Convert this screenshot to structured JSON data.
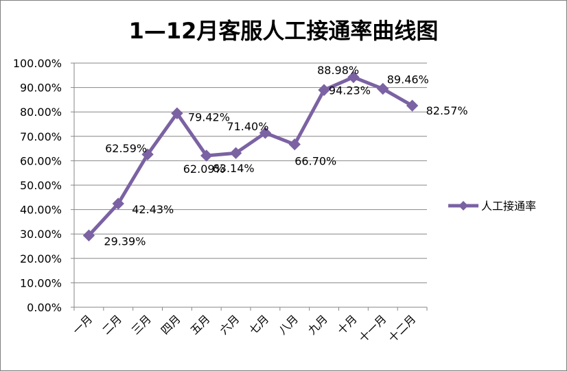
{
  "chart_data": {
    "type": "line",
    "title": "1—12月客服人工接通率曲线图",
    "xlabel": "",
    "ylabel": "",
    "categories": [
      "一月",
      "二月",
      "三月",
      "四月",
      "五月",
      "六月",
      "七月",
      "八月",
      "九月",
      "十月",
      "十一月",
      "十二月"
    ],
    "series": [
      {
        "name": "人工接通率",
        "color": "#7b62a3",
        "values": [
          29.39,
          42.43,
          62.59,
          79.42,
          62.09,
          63.14,
          71.4,
          66.7,
          88.98,
          94.23,
          89.46,
          82.57
        ],
        "labels": [
          "29.39%",
          "42.43%",
          "62.59%",
          "79.42%",
          "62.09%",
          "63.14%",
          "71.40%",
          "66.70%",
          "88.98%",
          "94.23%",
          "89.46%",
          "82.57%"
        ]
      }
    ],
    "ylim": [
      0,
      100
    ],
    "yticks": [
      "0.00%",
      "10.00%",
      "20.00%",
      "30.00%",
      "40.00%",
      "50.00%",
      "60.00%",
      "70.00%",
      "80.00%",
      "90.00%",
      "100.00%"
    ],
    "grid": true,
    "legend_position": "right"
  }
}
